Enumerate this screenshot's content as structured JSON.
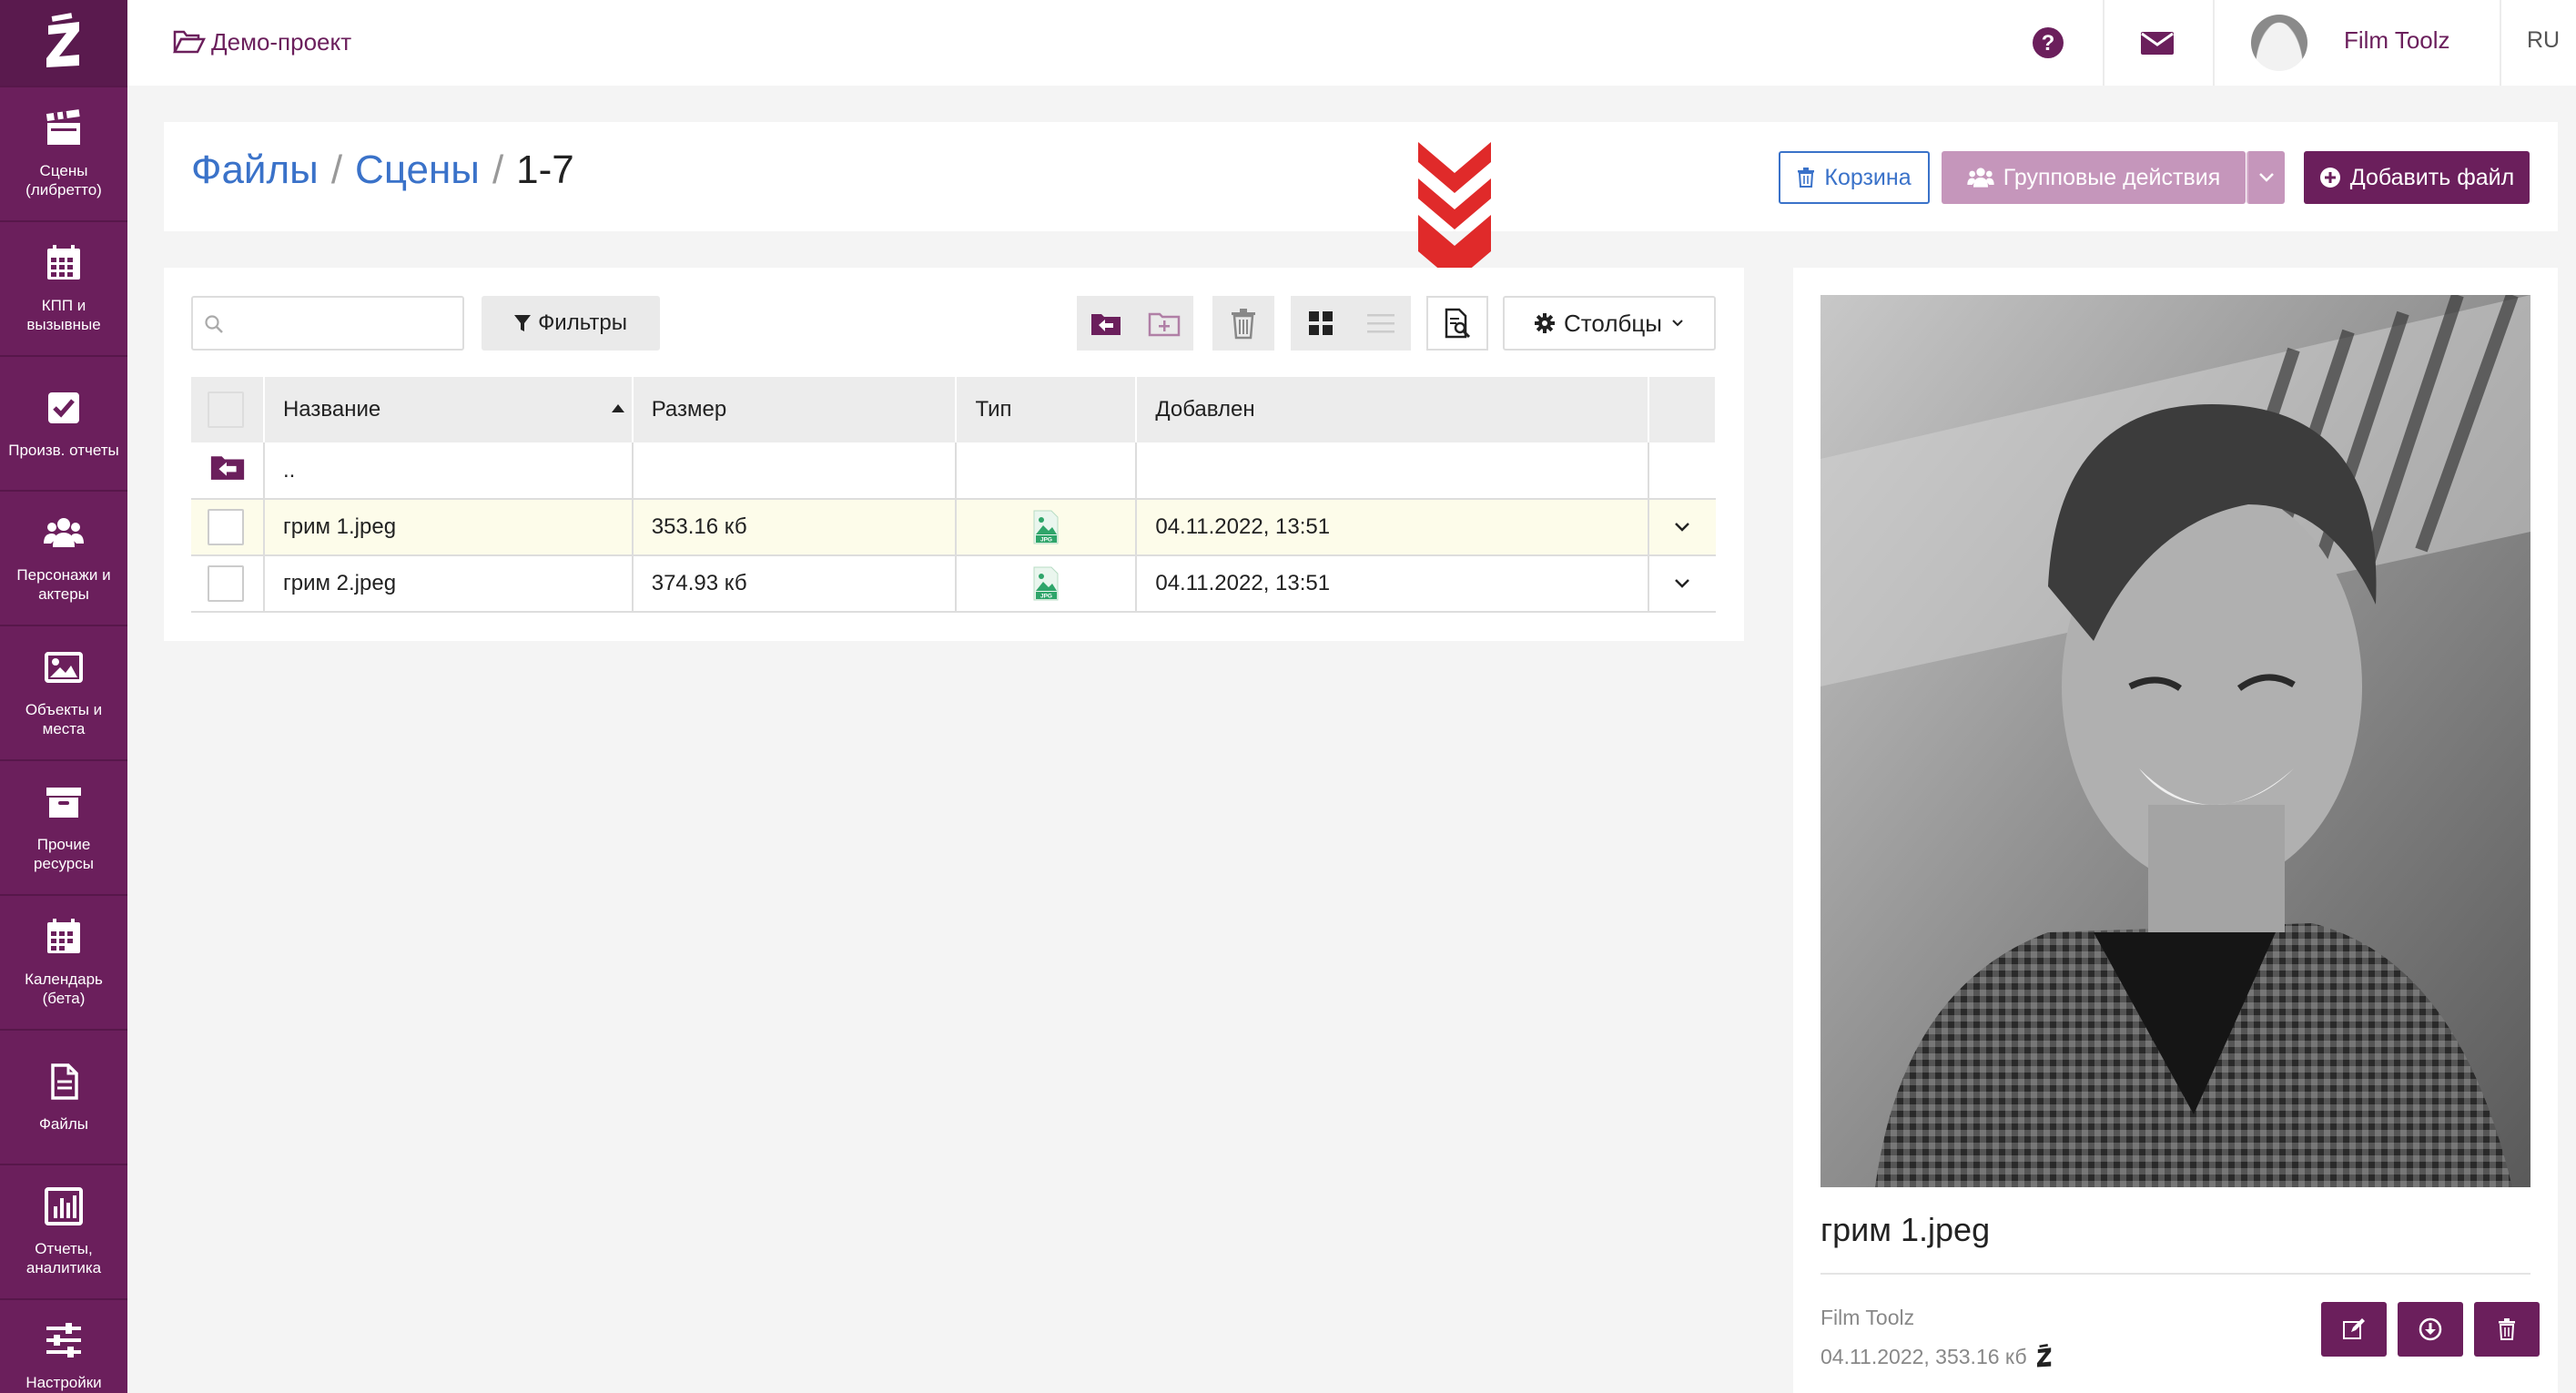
{
  "colors": {
    "brand": "#6b1f5c",
    "link": "#3a72c9",
    "arrow": "#e02a2a",
    "selected_row": "#fdfcea"
  },
  "sidebar": {
    "logo_icon": "z-logo-icon",
    "items": [
      {
        "label": "Сцены\n(либретто)",
        "icon": "clapperboard-icon"
      },
      {
        "label": "КПП и\nвызывные",
        "icon": "calendar-grid-icon"
      },
      {
        "label": "Произв. отчеты",
        "icon": "checkbox-icon"
      },
      {
        "label": "Персонажи и\nактеры",
        "icon": "users-icon"
      },
      {
        "label": "Объекты и\nместа",
        "icon": "image-icon"
      },
      {
        "label": "Прочие\nресурсы",
        "icon": "archive-icon"
      },
      {
        "label": "Календарь\n(бета)",
        "icon": "calendar-icon"
      },
      {
        "label": "Файлы",
        "icon": "file-icon"
      },
      {
        "label": "Отчеты,\nаналитика",
        "icon": "bar-chart-icon"
      },
      {
        "label": "Настройки",
        "icon": "sliders-icon"
      }
    ]
  },
  "topbar": {
    "project_name": "Демо-проект",
    "user_name": "Film Toolz",
    "language": "RU"
  },
  "breadcrumb": {
    "items": [
      "Файлы",
      "Сцены"
    ],
    "current": "1-7"
  },
  "actions": {
    "trash_label": "Корзина",
    "group_label": "Групповые действия",
    "add_label": "Добавить файл"
  },
  "toolbar": {
    "search_placeholder": "",
    "filters_label": "Фильтры",
    "columns_label": "Столбцы"
  },
  "table": {
    "columns": [
      "Название",
      "Размер",
      "Тип",
      "Добавлен"
    ],
    "parent_label": "..",
    "rows": [
      {
        "name": "грим 1.jpeg",
        "size": "353.16 кб",
        "type": "JPG",
        "added": "04.11.2022, 13:51",
        "selected": true
      },
      {
        "name": "грим 2.jpeg",
        "size": "374.93 кб",
        "type": "JPG",
        "added": "04.11.2022, 13:51",
        "selected": false
      }
    ]
  },
  "preview": {
    "file_name": "грим 1.jpeg",
    "uploader": "Film Toolz",
    "meta": "04.11.2022, 353.16 кб"
  }
}
